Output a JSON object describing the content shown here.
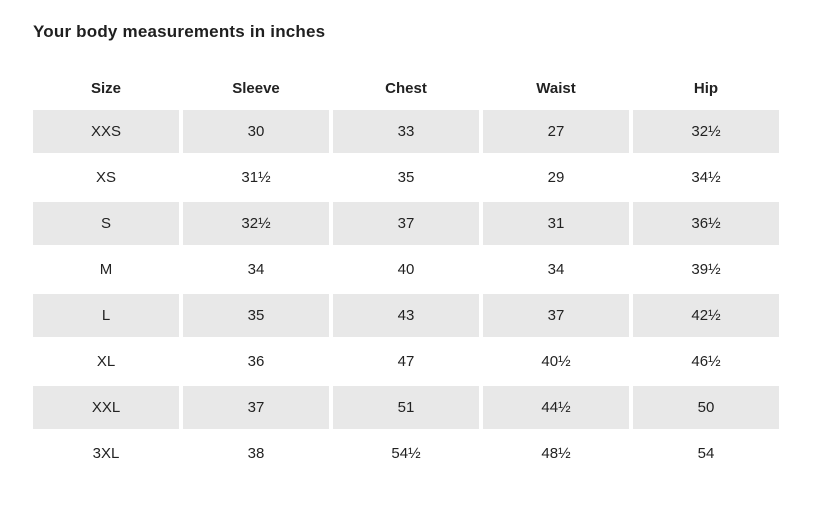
{
  "page": {
    "title": "Your body measurements in inches"
  },
  "colors": {
    "background": "#ffffff",
    "row_shaded_background": "#e8e8e8",
    "text": "#222222"
  },
  "chart_data": {
    "type": "table",
    "title": "Your body measurements in inches",
    "units": "inches",
    "columns": [
      "Size",
      "Sleeve",
      "Chest",
      "Waist",
      "Hip"
    ],
    "rows": [
      {
        "shaded": true,
        "cells": [
          "XXS",
          "30",
          "33",
          "27",
          "32½"
        ]
      },
      {
        "shaded": false,
        "cells": [
          "XS",
          "31½",
          "35",
          "29",
          "34½"
        ]
      },
      {
        "shaded": true,
        "cells": [
          "S",
          "32½",
          "37",
          "31",
          "36½"
        ]
      },
      {
        "shaded": false,
        "cells": [
          "M",
          "34",
          "40",
          "34",
          "39½"
        ]
      },
      {
        "shaded": true,
        "cells": [
          "L",
          "35",
          "43",
          "37",
          "42½"
        ]
      },
      {
        "shaded": false,
        "cells": [
          "XL",
          "36",
          "47",
          "40½",
          "46½"
        ]
      },
      {
        "shaded": true,
        "cells": [
          "XXL",
          "37",
          "51",
          "44½",
          "50"
        ]
      },
      {
        "shaded": false,
        "cells": [
          "3XL",
          "38",
          "54½",
          "48½",
          "54"
        ]
      }
    ]
  }
}
